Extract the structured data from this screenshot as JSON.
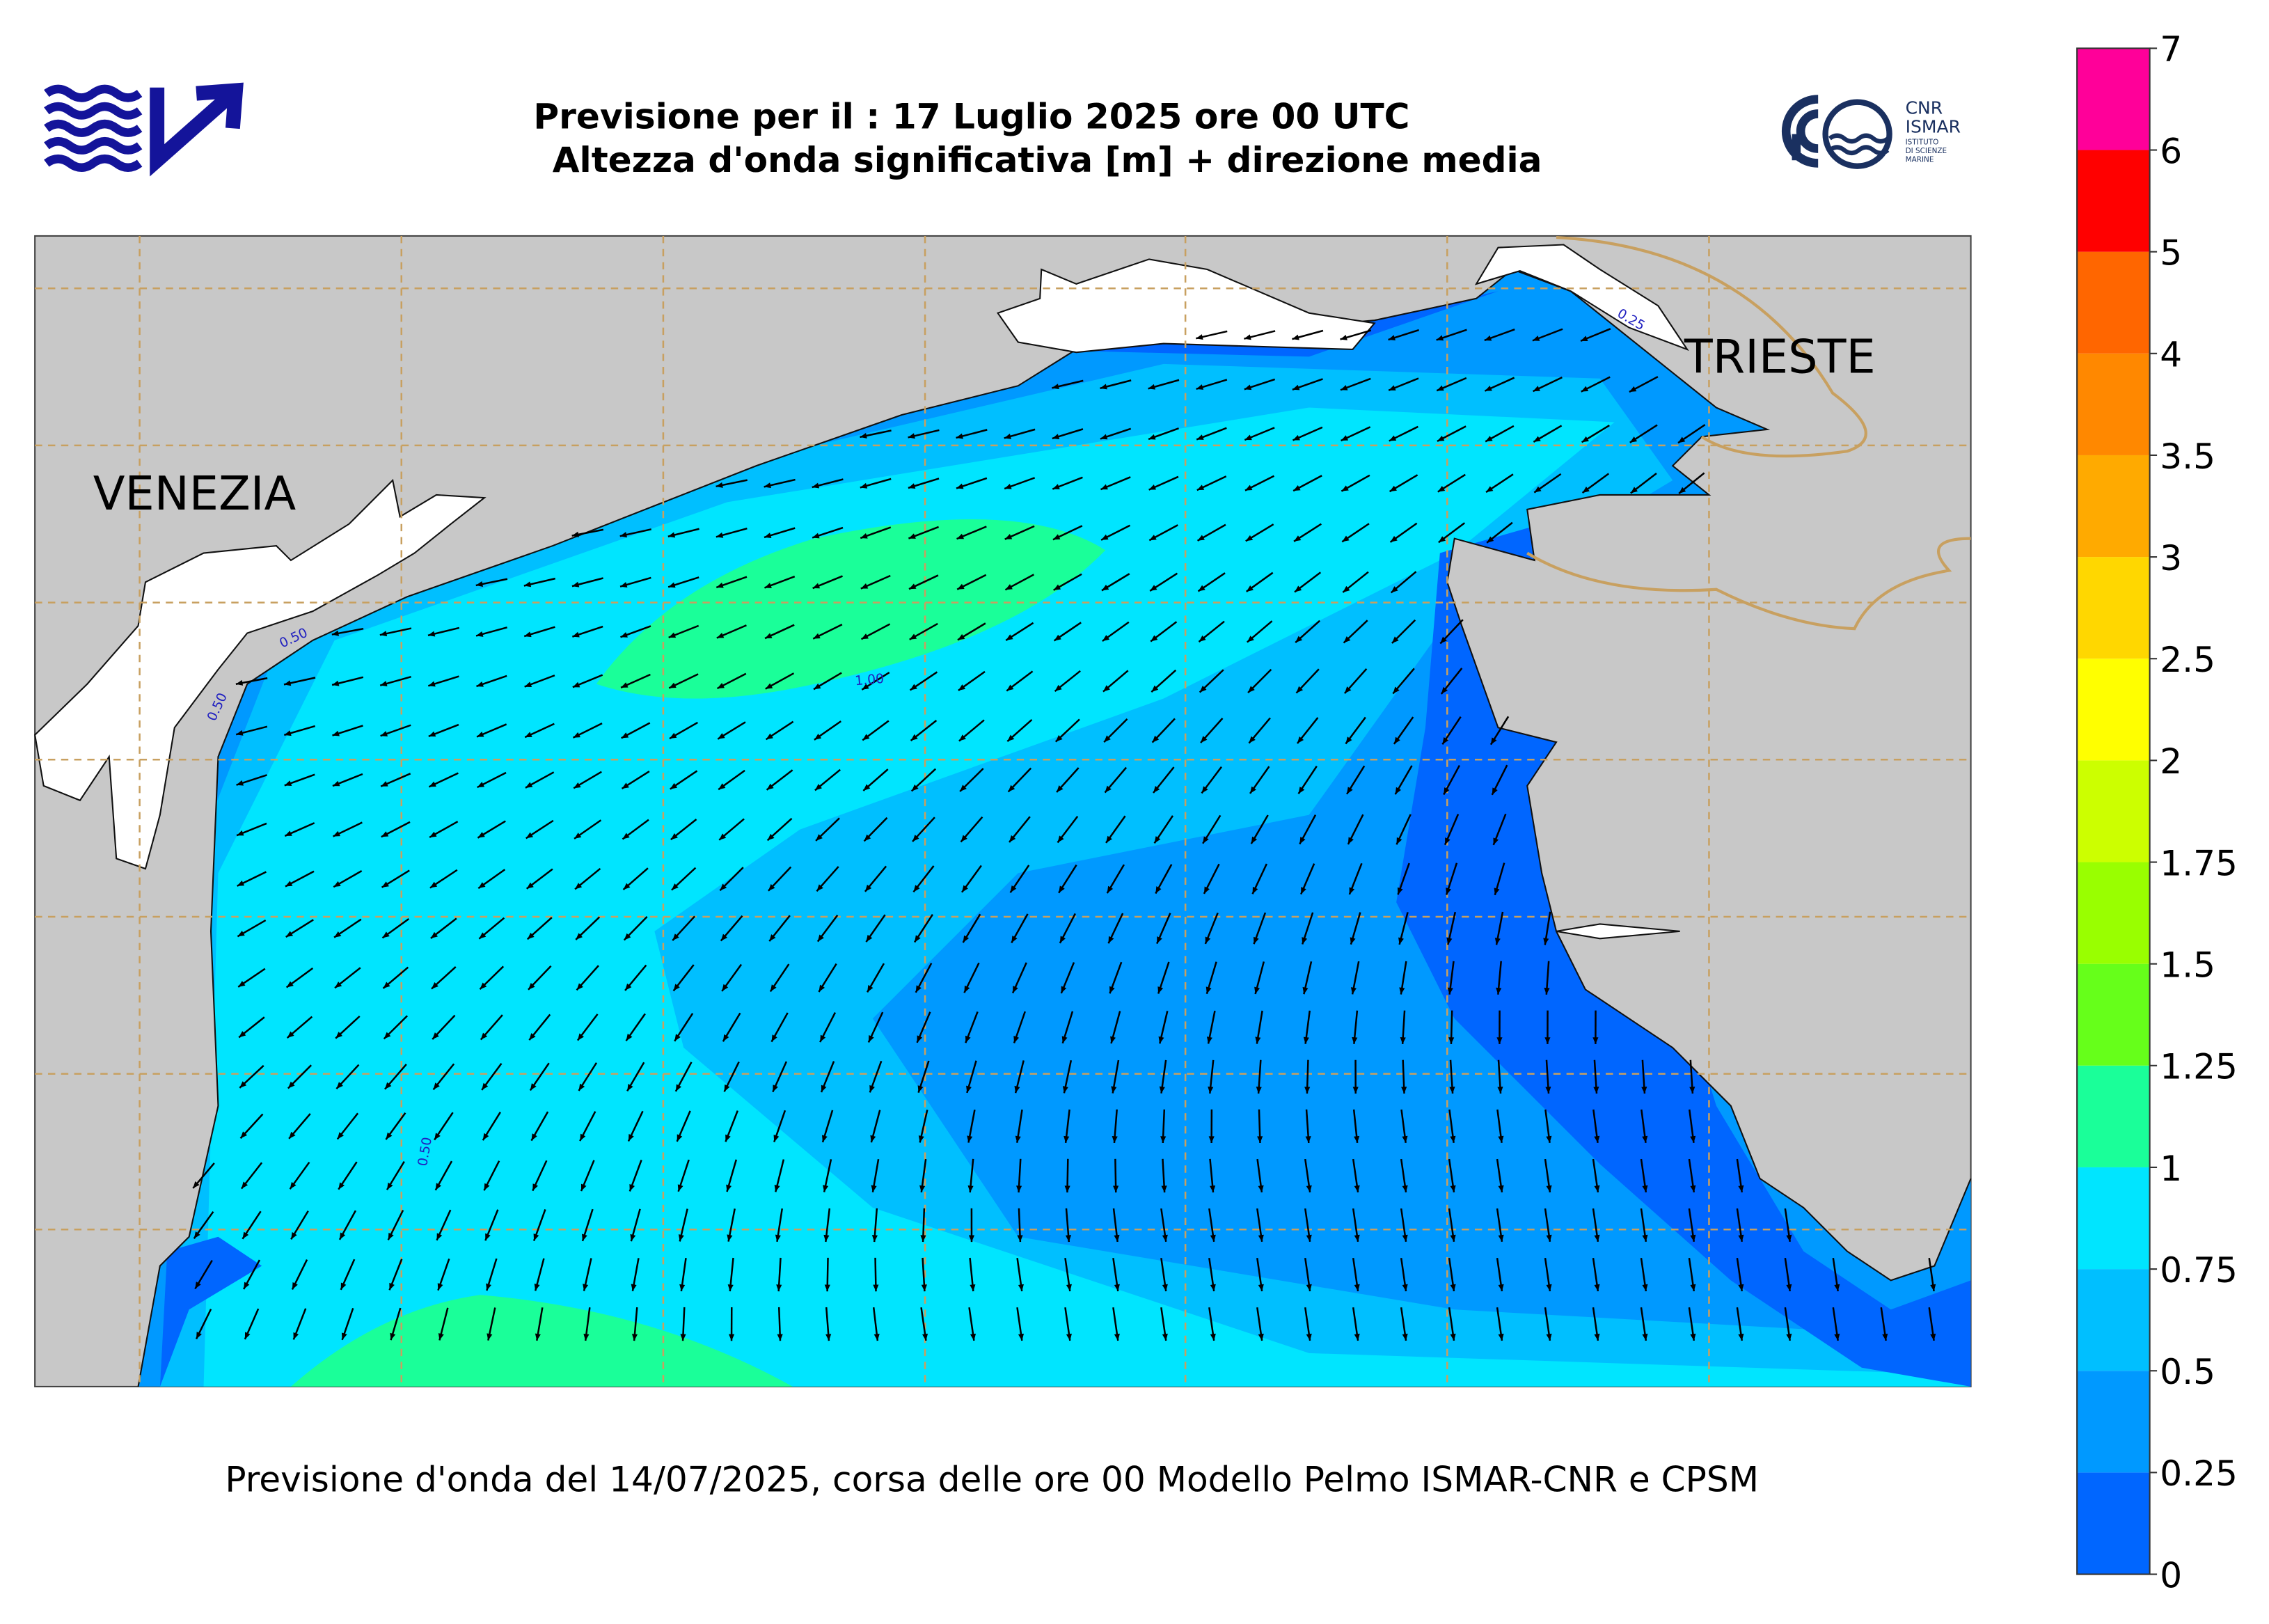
{
  "header": {
    "title_line1": "Previsione per il : 17 Luglio 2025 ore 00 UTC",
    "title_line2": "Altezza d'onda significativa [m] + direzione media"
  },
  "logo": {
    "org": "CNR",
    "institute": "ISMAR",
    "subtitle": [
      "ISTITUTO",
      "DI SCIENZE",
      "MARINE"
    ]
  },
  "map": {
    "cities": [
      "VENEZIA",
      "TRIESTE"
    ],
    "contour_labels": [
      "0.50",
      "0.50",
      "1.00",
      "0.50",
      "0.25"
    ]
  },
  "colorbar": {
    "ticks": [
      0,
      0.25,
      0.5,
      0.75,
      1,
      1.25,
      1.5,
      1.75,
      2,
      2.5,
      3,
      3.5,
      4,
      5,
      6,
      7
    ],
    "colors": [
      "#0066ff",
      "#0099ff",
      "#00bfff",
      "#00e5ff",
      "#1aff99",
      "#66ff1a",
      "#99ff00",
      "#ccff00",
      "#ffff00",
      "#ffd700",
      "#ffaa00",
      "#ff8800",
      "#ff6600",
      "#ff0000",
      "#ff0099"
    ]
  },
  "footer": "Previsione d'onda del 14/07/2025, corsa delle ore 00 Modello Pelmo ISMAR-CNR e CPSM"
}
